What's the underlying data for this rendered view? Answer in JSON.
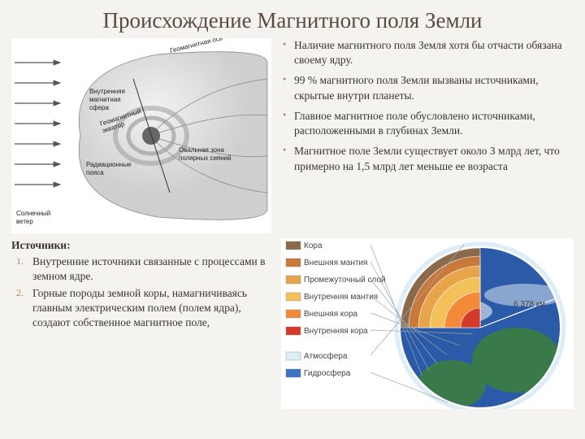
{
  "title": "Происхождение Магнитного поля Земли",
  "bullets": [
    "Наличие магнитного поля Земля хотя бы отчасти обязана своему ядру.",
    "99 % магнитного поля Земли вызваны источниками, скрытые внутри планеты.",
    "Главное магнитное поле обусловлено источниками, расположенными в глубинах Земли.",
    "Магнитное поле Земли существует около 3 млрд лет, что примерно на 1,5 млрд лет меньше ее возраста"
  ],
  "sources_heading": "Источники:",
  "sources": [
    "Внутренние источники связанные с процессами в земном ядре.",
    "Горные породы земной коры, намагничиваясь главным электрическим полем (полем ядра), создают собственное магнитное поле,"
  ],
  "magnetosphere": {
    "type": "diagram",
    "labels": {
      "geomagnitnaya_os": "Геомагнитная ось",
      "vnutrennyaya_sfera": "Внутренняя магнитная сфера",
      "geomag_ekvator": "Геомагнитный экватор",
      "rad_poyasa": "Радиационные пояса",
      "ovalnaya_zona": "Овальная зона полярных сияний",
      "solnechnyj_veter": "Солнечный ветер"
    },
    "colors": {
      "bg": "#ffffff",
      "sphere_fill": "#cfcfcf",
      "sphere_stroke": "#888888",
      "arrow": "#555555",
      "earth": "#666666",
      "belt": "#9a9a9a",
      "text": "#222222"
    }
  },
  "earth_layers": {
    "type": "diagram",
    "layers": [
      {
        "name": "Кора",
        "color": "#8a6a4a",
        "swatch": "#8a6a4a"
      },
      {
        "name": "Внешняя мантия",
        "color": "#c97a3a",
        "swatch": "#c97a3a"
      },
      {
        "name": "Промежуточный слой",
        "color": "#e8a448",
        "swatch": "#e8a448"
      },
      {
        "name": "Внутренняя мантия",
        "color": "#f4c05a",
        "swatch": "#f4c05a"
      },
      {
        "name": "Внешняя кора",
        "color": "#f28a3a",
        "swatch": "#f28a3a"
      },
      {
        "name": "Внутренняя кора",
        "color": "#d43a2a",
        "swatch": "#d43a2a"
      },
      {
        "name": "Атмосфера",
        "color": "#d9eef7",
        "swatch": "#d9eef7"
      },
      {
        "name": "Гидросфера",
        "color": "#3a72c4",
        "swatch": "#3a72c4"
      }
    ],
    "radii": [
      98,
      88,
      76,
      62,
      44,
      24
    ],
    "scale_label": "6 378 км",
    "bg": "#ffffff",
    "ocean": "#2a5aa8",
    "land": "#3a7a4a",
    "cloud": "#e8f2f8"
  }
}
